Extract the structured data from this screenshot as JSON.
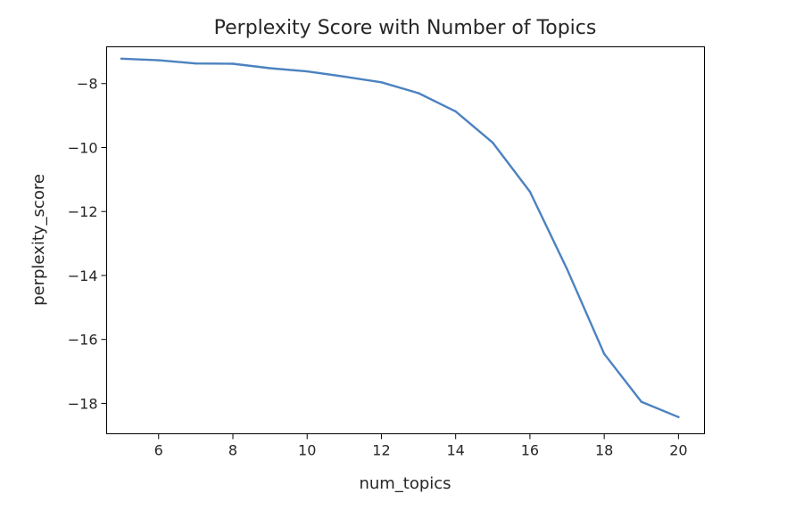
{
  "chart_data": {
    "type": "line",
    "title": "Perplexity Score with Number of Topics",
    "xlabel": "num_topics",
    "ylabel": "perplexity_score",
    "xlim": [
      4.6,
      20.7
    ],
    "ylim": [
      -18.95,
      -6.85
    ],
    "x_ticks": [
      6,
      8,
      10,
      12,
      14,
      16,
      18,
      20
    ],
    "x_tick_labels": [
      "6",
      "8",
      "10",
      "12",
      "14",
      "16",
      "18",
      "20"
    ],
    "y_ticks": [
      -8,
      -10,
      -12,
      -14,
      -16,
      -18
    ],
    "y_tick_labels": [
      "−8",
      "−10",
      "−12",
      "−14",
      "−16",
      "−18"
    ],
    "grid": false,
    "legend": false,
    "series": [
      {
        "color": "#4c82c0",
        "x": [
          5,
          6,
          7,
          8,
          9,
          10,
          11,
          12,
          13,
          14,
          15,
          16,
          17,
          18,
          19,
          20
        ],
        "y": [
          -7.22,
          -7.27,
          -7.37,
          -7.38,
          -7.52,
          -7.62,
          -7.78,
          -7.96,
          -8.3,
          -8.87,
          -9.85,
          -11.38,
          -13.8,
          -16.45,
          -17.95,
          -18.43
        ]
      }
    ]
  }
}
